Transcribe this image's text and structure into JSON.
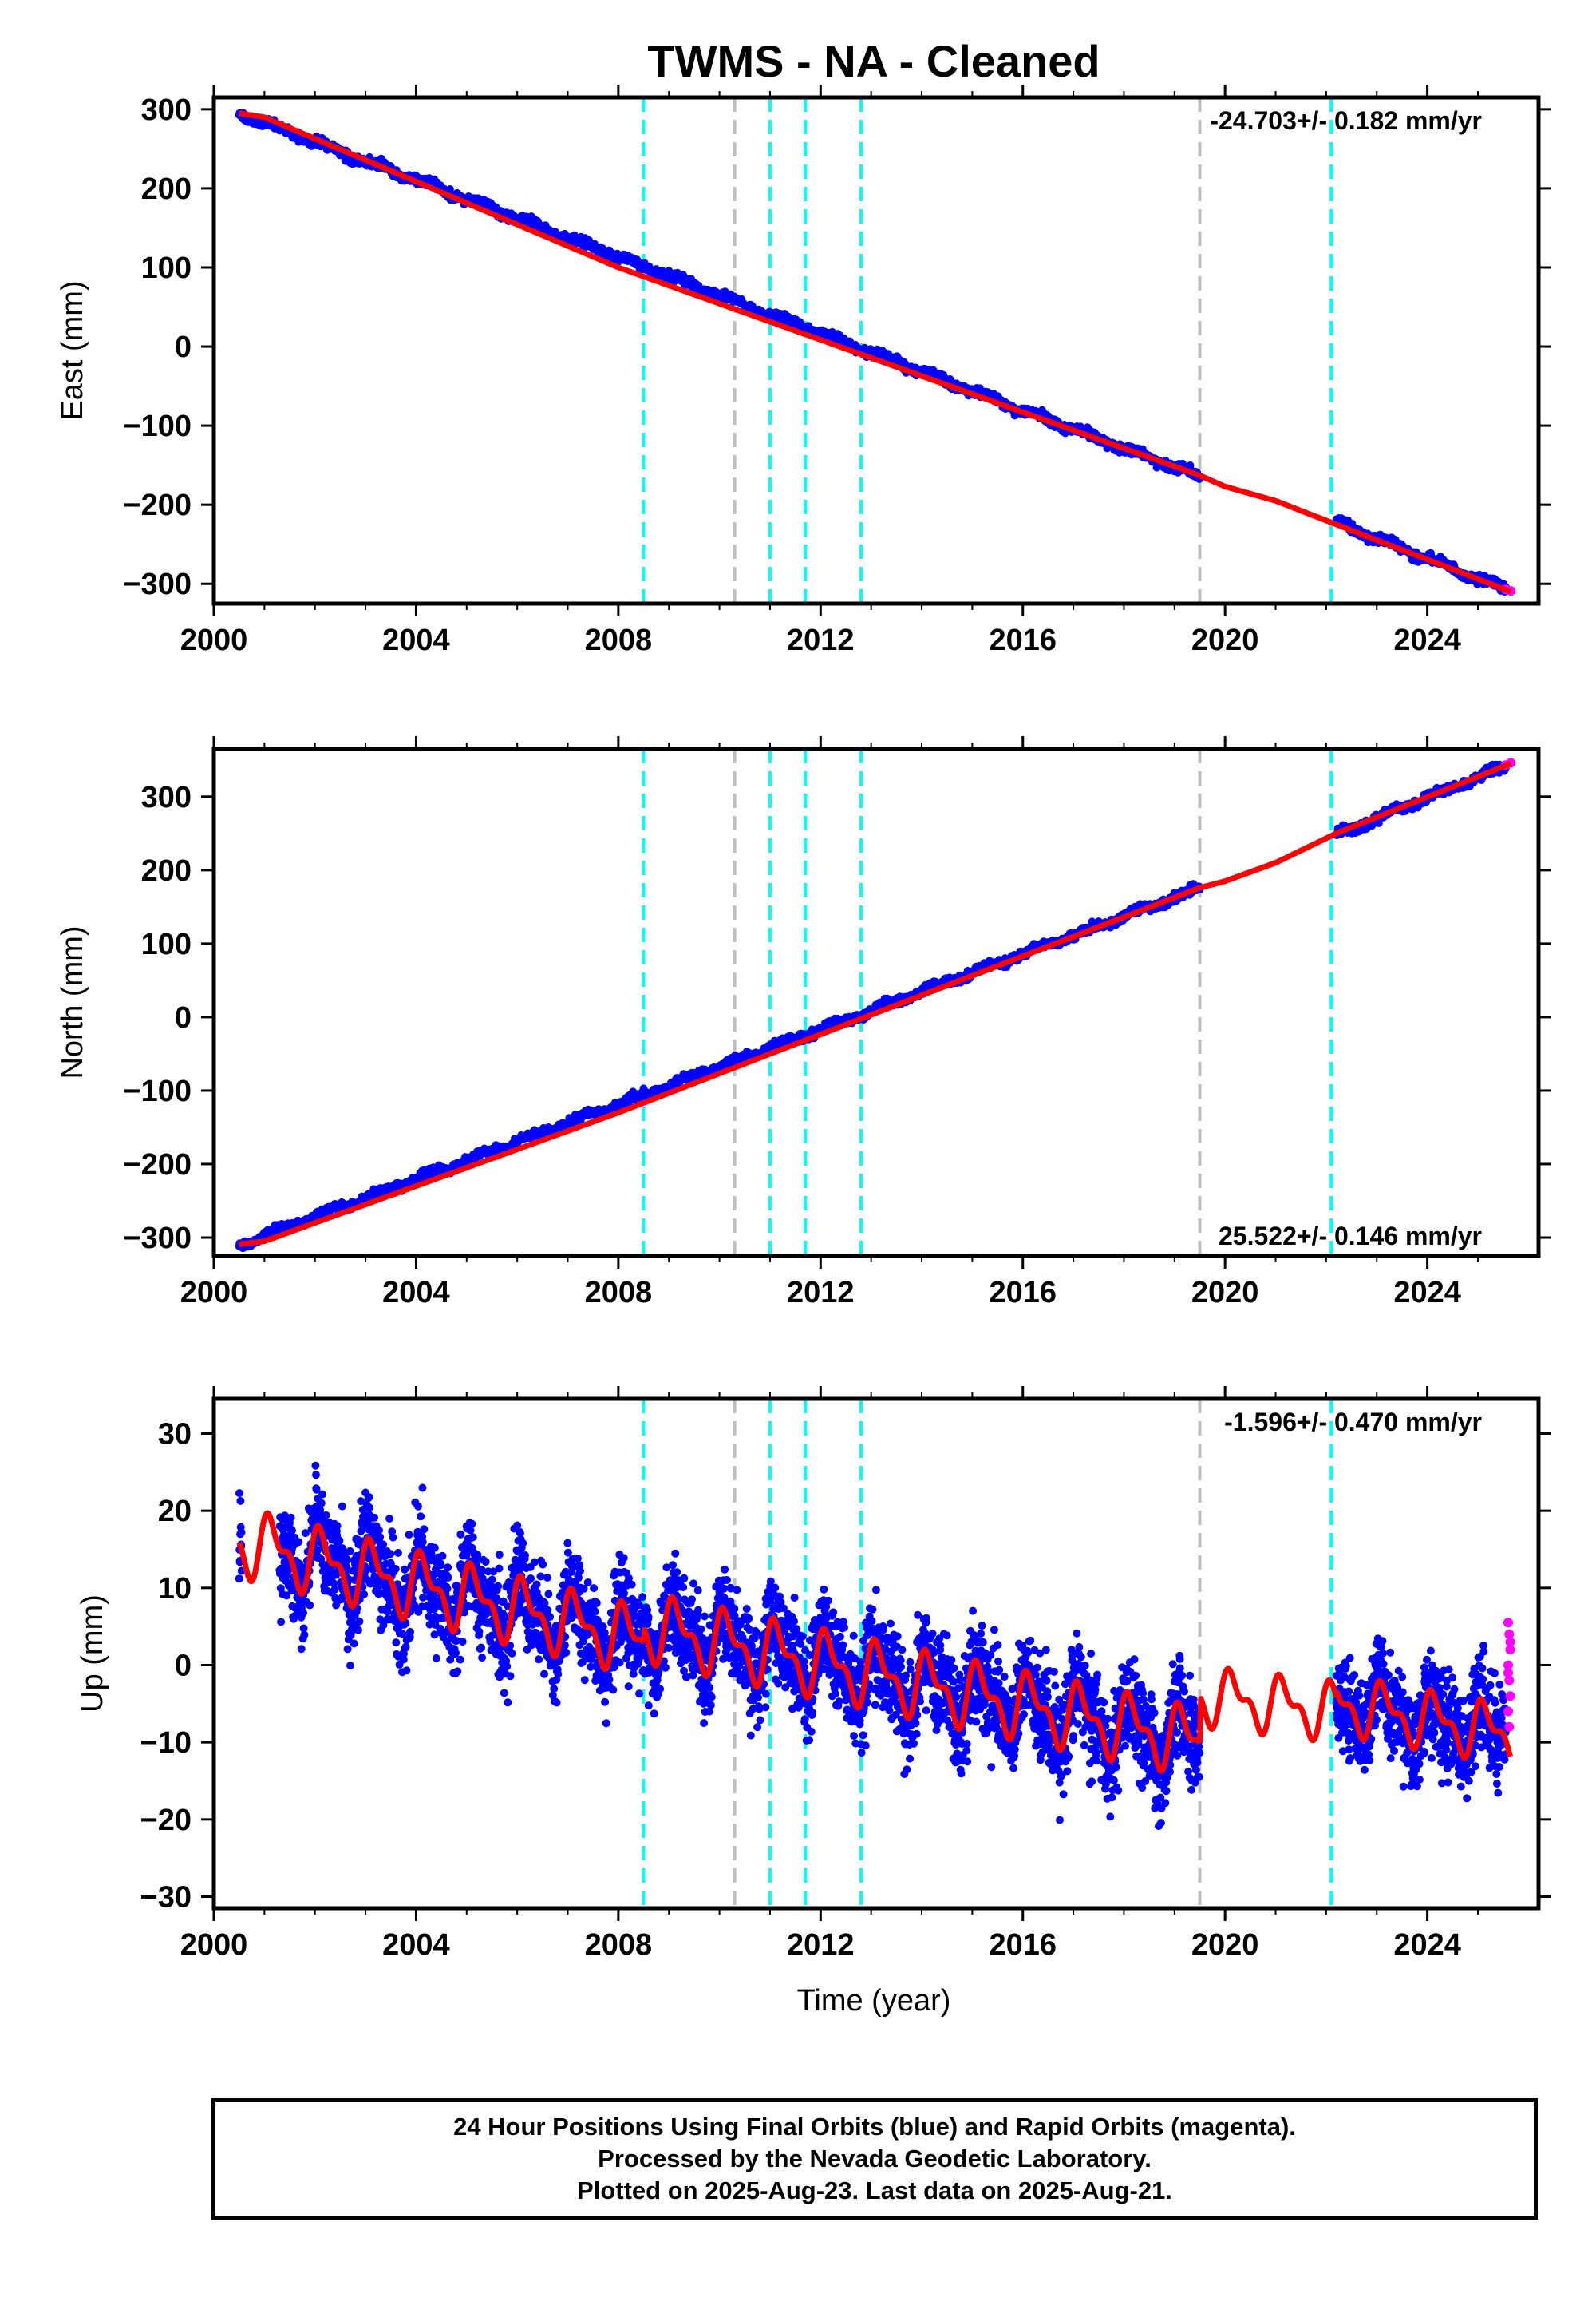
{
  "title": "TWMS  - NA - Cleaned",
  "xlabel": "Time (year)",
  "colors": {
    "final": "#0000ff",
    "rapid": "#ff00ff",
    "model": "#ff0000",
    "equipment_change": "#00ffff",
    "other_event": "#bfbfbf"
  },
  "footer": {
    "line1": "24 Hour Positions Using Final Orbits (blue) and Rapid Orbits (magenta).",
    "line2": "Processed by the Nevada Geodetic Laboratory.",
    "line3": "Plotted on 2025-Aug-23. Last data on 2025-Aug-21."
  },
  "chart_data": [
    {
      "type": "scatter",
      "ylabel": "East (mm)",
      "rate_label": "-24.703+/- 0.182 mm/yr",
      "rate_position": "top-right",
      "xlim": [
        2000,
        2026.2
      ],
      "ylim": [
        -325,
        315
      ],
      "xticks": [
        "2000",
        "2004",
        "2008",
        "2012",
        "2016",
        "2020",
        "2024"
      ],
      "yticks": [
        "300",
        "200",
        "100",
        "0",
        "−100",
        "−200",
        "−300"
      ],
      "ytick_values": [
        300,
        200,
        100,
        0,
        -100,
        -200,
        -300
      ],
      "series": [
        {
          "name": "Final Orbits",
          "trend": [
            [
              2000.5,
              295
            ],
            [
              2019.5,
              -165
            ]
          ],
          "gap": [
            2019.5,
            2022.2
          ],
          "resume": [
            [
              2022.2,
              -222
            ],
            [
              2025.55,
              -307
            ]
          ],
          "scatter": 4
        },
        {
          "name": "Rapid Orbits",
          "points": [
            [
              2025.55,
              -307
            ],
            [
              2025.65,
              -309
            ]
          ]
        }
      ],
      "model": [
        [
          2000.5,
          295
        ],
        [
          2001.0,
          290
        ],
        [
          2008.0,
          100
        ],
        [
          2019.5,
          -163
        ],
        [
          2020.0,
          -177
        ],
        [
          2021.0,
          -195
        ],
        [
          2022.2,
          -225
        ],
        [
          2025.65,
          -310
        ]
      ],
      "equipment_changes": [
        2008.5,
        2011.0,
        2011.7,
        2012.8,
        2022.1
      ],
      "other_events": [
        2010.3,
        2019.5
      ]
    },
    {
      "type": "scatter",
      "ylabel": "North (mm)",
      "rate_label": "25.522+/- 0.146 mm/yr",
      "rate_position": "bottom-right",
      "xlim": [
        2000,
        2026.2
      ],
      "ylim": [
        -325,
        365
      ],
      "xticks": [
        "2000",
        "2004",
        "2008",
        "2012",
        "2016",
        "2020",
        "2024"
      ],
      "yticks": [
        "300",
        "200",
        "100",
        "0",
        "−100",
        "−200",
        "−300"
      ],
      "ytick_values": [
        300,
        200,
        100,
        0,
        -100,
        -200,
        -300
      ],
      "series": [
        {
          "name": "Final Orbits",
          "trend": [
            [
              2000.5,
              -310
            ],
            [
              2019.5,
              175
            ]
          ],
          "gap": [
            2019.5,
            2022.2
          ],
          "resume": [
            [
              2022.2,
              248
            ],
            [
              2025.55,
              342
            ]
          ],
          "scatter": 4
        },
        {
          "name": "Rapid Orbits",
          "points": [
            [
              2025.55,
              343
            ],
            [
              2025.65,
              346
            ]
          ]
        }
      ],
      "model": [
        [
          2000.5,
          -309
        ],
        [
          2001.0,
          -305
        ],
        [
          2008.0,
          -130
        ],
        [
          2019.5,
          176
        ],
        [
          2020.0,
          185
        ],
        [
          2021.0,
          210
        ],
        [
          2022.2,
          250
        ],
        [
          2025.65,
          345
        ]
      ],
      "equipment_changes": [
        2008.5,
        2011.0,
        2011.7,
        2012.8,
        2022.1
      ],
      "other_events": [
        2010.3,
        2019.5
      ]
    },
    {
      "type": "scatter",
      "ylabel": "Up (mm)",
      "rate_label": "-1.596+/- 0.470 mm/yr",
      "rate_position": "top-right",
      "xlim": [
        2000,
        2026.2
      ],
      "ylim": [
        -31.5,
        34.5
      ],
      "xticks": [
        "2000",
        "2004",
        "2008",
        "2012",
        "2016",
        "2020",
        "2024"
      ],
      "yticks": [
        "30",
        "20",
        "10",
        "0",
        "−10",
        "−20",
        "−30"
      ],
      "ytick_values": [
        30,
        20,
        10,
        0,
        -10,
        -20,
        -30
      ],
      "series": [
        {
          "name": "Final Orbits",
          "segments": [
            [
              2000.5,
              2000.55
            ],
            [
              2001.3,
              2019.5
            ],
            [
              2022.2,
              2025.55
            ]
          ],
          "spread": 11
        },
        {
          "name": "Rapid Orbits",
          "points": [
            [
              2025.6,
              5.5
            ],
            [
              2025.62,
              4
            ],
            [
              2025.64,
              2
            ],
            [
              2025.6,
              0
            ],
            [
              2025.62,
              -2
            ],
            [
              2025.64,
              -4
            ],
            [
              2025.6,
              -6
            ],
            [
              2025.62,
              -8
            ],
            [
              2025.64,
              3
            ],
            [
              2025.6,
              -1
            ]
          ]
        }
      ],
      "model_breaks": [
        {
          "x0": 2000.5,
          "x1": 2008.5,
          "start": 16,
          "end": 3,
          "amp": 3.5
        },
        {
          "x0": 2008.5,
          "x1": 2019.5,
          "start": 5,
          "end": -10,
          "amp": 3.5
        },
        {
          "x0": 2019.5,
          "x1": 2022.2,
          "start": -4,
          "end": -6,
          "amp": 3
        },
        {
          "x0": 2022.2,
          "x1": 2025.65,
          "start": -5,
          "end": -9,
          "amp": 3
        }
      ],
      "equipment_changes": [
        2008.5,
        2011.0,
        2011.7,
        2012.8,
        2022.1
      ],
      "other_events": [
        2010.3,
        2019.5
      ]
    }
  ]
}
